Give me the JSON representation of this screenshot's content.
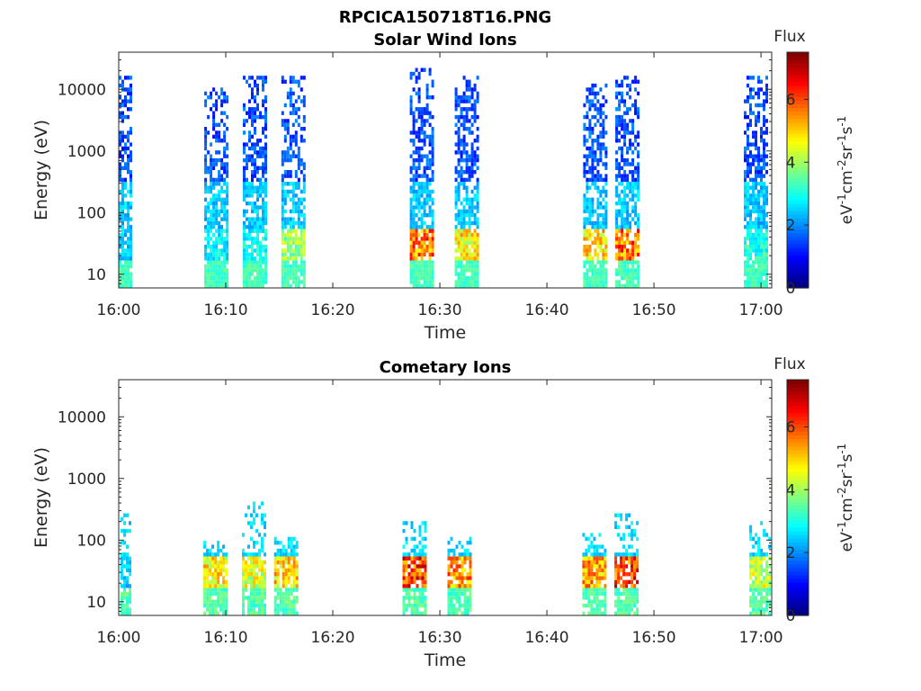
{
  "figure_title": "RPCICA150718T16.PNG",
  "chart_data": [
    {
      "type": "heatmap",
      "title": "Solar Wind Ions",
      "xlabel": "Time",
      "ylabel": "Energy (eV)",
      "xlim": [
        "16:00",
        "17:01"
      ],
      "ylim": [
        6,
        40000
      ],
      "yscale": "log",
      "x_ticks": [
        "16:00",
        "16:10",
        "16:20",
        "16:30",
        "16:40",
        "16:50",
        "17:00"
      ],
      "y_ticks": [
        "10",
        "100",
        "1000",
        "10000"
      ],
      "colorbar": {
        "label": "Flux",
        "units": "eV-1cm-2sr-1s-1",
        "min": 0,
        "max": 7.5,
        "ticks": [
          "0",
          "2",
          "4",
          "6"
        ],
        "colormap": "jet"
      },
      "bursts": [
        {
          "t": 16.0,
          "emax": 15000,
          "dense_low": true,
          "peak": 2.8
        },
        {
          "t": 16.15,
          "emax": 10000,
          "dense_low": true,
          "peak": 3.2
        },
        {
          "t": 16.21,
          "emax": 15000,
          "dense_low": true,
          "peak": 3.4
        },
        {
          "t": 16.27,
          "emax": 15000,
          "dense_low": true,
          "peak": 4.6
        },
        {
          "t": 16.47,
          "emax": 20000,
          "dense_low": true,
          "peak": 6.6
        },
        {
          "t": 16.54,
          "emax": 15000,
          "dense_low": true,
          "peak": 5.6
        },
        {
          "t": 16.74,
          "emax": 12000,
          "dense_low": true,
          "peak": 5.8
        },
        {
          "t": 16.79,
          "emax": 15000,
          "dense_low": true,
          "peak": 6.8
        },
        {
          "t": 16.99,
          "emax": 15000,
          "dense_low": true,
          "peak": 3.6
        }
      ]
    },
    {
      "type": "heatmap",
      "title": "Cometary Ions",
      "xlabel": "Time",
      "ylabel": "Energy (eV)",
      "xlim": [
        "16:00",
        "17:01"
      ],
      "ylim": [
        6,
        40000
      ],
      "yscale": "log",
      "x_ticks": [
        "16:00",
        "16:10",
        "16:20",
        "16:30",
        "16:40",
        "16:50",
        "17:00"
      ],
      "y_ticks": [
        "10",
        "100",
        "1000",
        "10000"
      ],
      "colorbar": {
        "label": "Flux",
        "units": "eV-1cm-2sr-1s-1",
        "min": 0,
        "max": 7.5,
        "ticks": [
          "0",
          "2",
          "4",
          "6"
        ],
        "colormap": "jet"
      },
      "bursts": [
        {
          "t": 16.0,
          "emax": 250,
          "peak": 2.8
        },
        {
          "t": 16.15,
          "emax": 90,
          "peak": 5.6
        },
        {
          "t": 16.21,
          "emax": 400,
          "peak": 5.2
        },
        {
          "t": 16.26,
          "emax": 110,
          "peak": 5.8
        },
        {
          "t": 16.46,
          "emax": 200,
          "peak": 7.2
        },
        {
          "t": 16.53,
          "emax": 110,
          "peak": 6.4
        },
        {
          "t": 16.74,
          "emax": 140,
          "peak": 6.2
        },
        {
          "t": 16.79,
          "emax": 270,
          "peak": 7.2
        },
        {
          "t": 17.0,
          "emax": 200,
          "peak": 5.0
        }
      ]
    }
  ]
}
